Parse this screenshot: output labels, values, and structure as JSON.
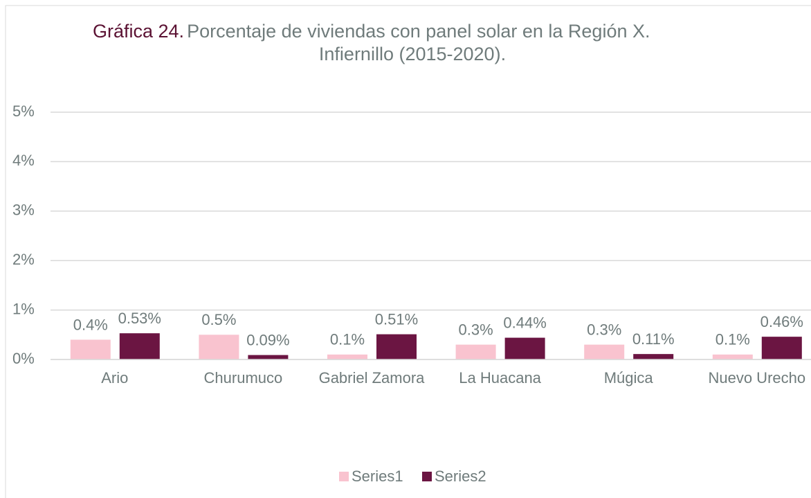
{
  "chart_data": {
    "type": "bar",
    "title_prefix": "Gráfica 24.",
    "title_lines": [
      "Porcentaje de viviendas con panel solar en la Región X.",
      "Infiernillo (2015-2020)."
    ],
    "categories": [
      "Ario",
      "Churumuco",
      "Gabriel Zamora",
      "La Huacana",
      "Múgica",
      "Nuevo Urecho"
    ],
    "series": [
      {
        "name": "Series1",
        "color": "#f9c3cf",
        "values": [
          0.4,
          0.5,
          0.1,
          0.3,
          0.3,
          0.1
        ],
        "value_labels": [
          "0.4%",
          "0.5%",
          "0.1%",
          "0.3%",
          "0.3%",
          "0.1%"
        ]
      },
      {
        "name": "Series2",
        "color": "#6b1542",
        "values": [
          0.53,
          0.09,
          0.51,
          0.44,
          0.11,
          0.46
        ],
        "value_labels": [
          "0.53%",
          "0.09%",
          "0.51%",
          "0.44%",
          "0.11%",
          "0.46%"
        ]
      }
    ],
    "ylim": [
      0,
      5
    ],
    "yticks": [
      {
        "value": 0,
        "label": "0%"
      },
      {
        "value": 1,
        "label": "1%"
      },
      {
        "value": 2,
        "label": "2%"
      },
      {
        "value": 3,
        "label": "3%"
      },
      {
        "value": 4,
        "label": "4%"
      },
      {
        "value": 5,
        "label": "5%"
      }
    ],
    "grid": true,
    "legend": "bottom"
  }
}
